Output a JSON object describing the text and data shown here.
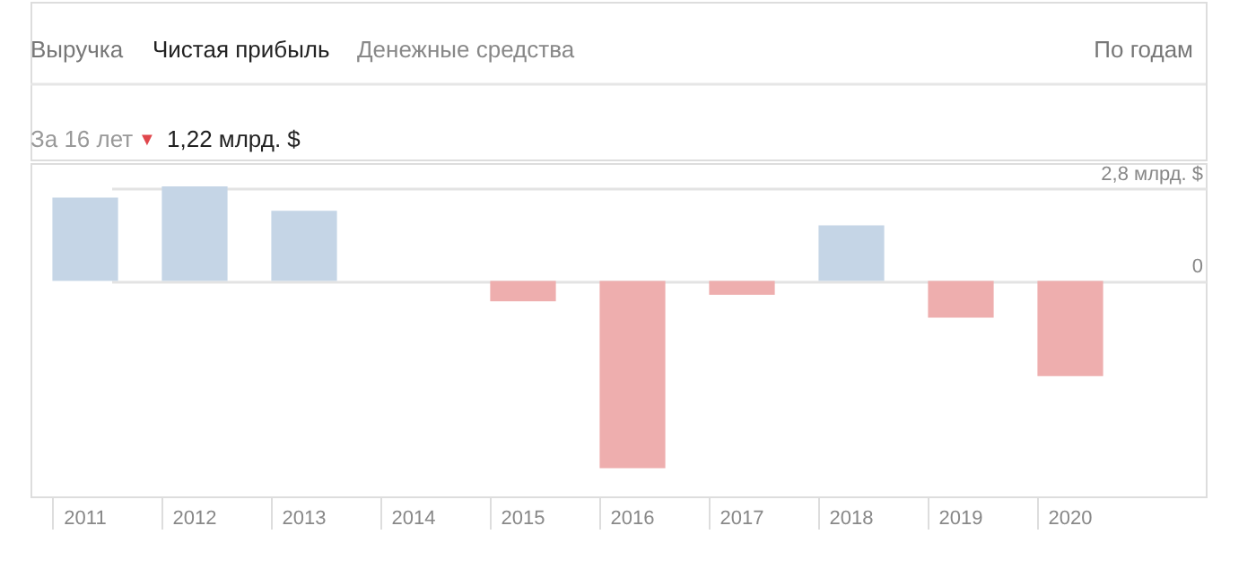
{
  "chart_data": {
    "type": "bar",
    "categories": [
      "2011",
      "2012",
      "2013",
      "2014",
      "2015",
      "2016",
      "2017",
      "2018",
      "2019",
      "2020"
    ],
    "values": [
      2.51,
      2.85,
      2.11,
      0,
      -0.62,
      -5.65,
      -0.42,
      1.67,
      -1.11,
      -2.87
    ],
    "colors": [
      "#c5d5e6",
      "#c5d5e6",
      "#c5d5e6",
      "#c5d5e6",
      "#eeaeae",
      "#eeaeae",
      "#eeaeae",
      "#c5d5e6",
      "#eeaeae",
      "#eeaeae"
    ],
    "ylim": [
      -6.5,
      3.55
    ],
    "yticks": [
      0,
      {
        "value": 2.8,
        "label": "2,8 млрд. $"
      }
    ],
    "grid": "y",
    "annotations": [
      "Выручка",
      "Чистая прибыль",
      "Денежные средства",
      "По годам",
      "За 16 лет",
      "▼",
      "1,22 млрд. $"
    ]
  }
}
